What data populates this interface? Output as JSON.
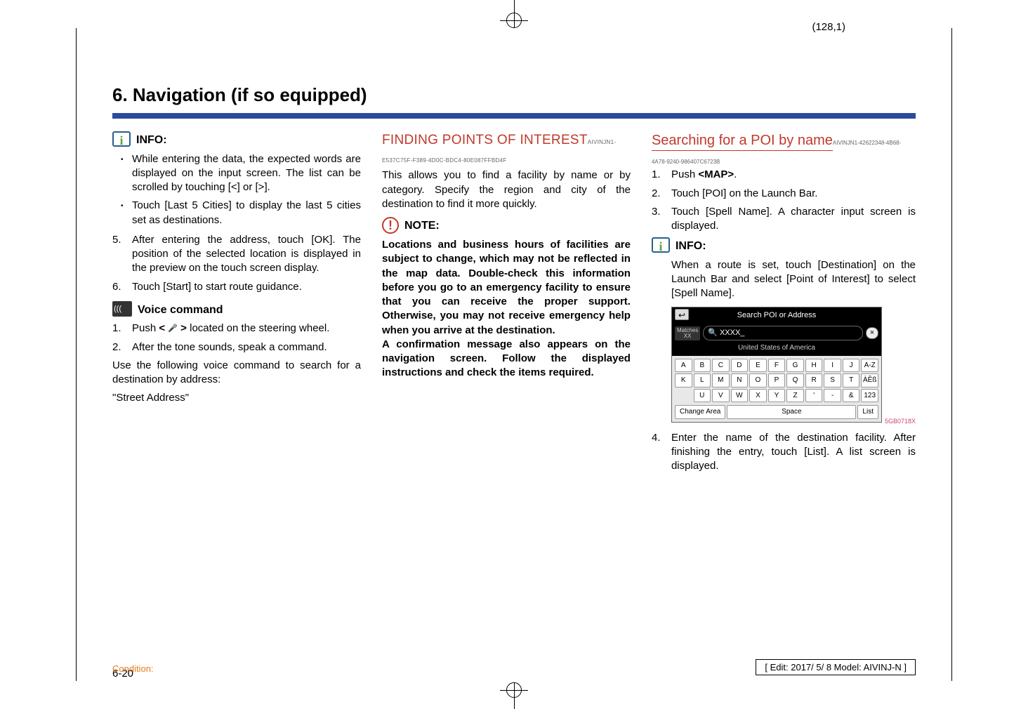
{
  "page_coord": "(128,1)",
  "section_title": "6. Navigation (if so equipped)",
  "colors": {
    "rule_blue": "#2a4b9b",
    "heading_red": "#c0392b",
    "condition_orange": "#e67e22",
    "text": "#000000",
    "info_border": "#2a5f8f",
    "info_i": "#59a63f"
  },
  "col1": {
    "info_label": "INFO:",
    "bullets": [
      "While entering the data, the expected words are displayed on the input screen. The list can be scrolled by touching [<] or [>].",
      "Touch [Last 5 Cities] to display the last 5 cities set as destinations."
    ],
    "steps5": [
      "After entering the address, touch [OK]. The position of the selected location is displayed in the preview on the touch screen display.",
      "Touch [Start] to start route guidance."
    ],
    "voice_label": "Voice command",
    "voice_steps": [
      "Push < 🎤 > located on the steering wheel.",
      "After the tone sounds, speak a command."
    ],
    "voice_para": "Use the following voice command to search for a destination by address:",
    "voice_quote": "\"Street Address\""
  },
  "col2": {
    "heading": "FINDING POINTS OF INTEREST",
    "heading_code": "AIVINJN1-E537C75F-F389-4D0C-BDC4-80E087FFBD4F",
    "intro": "This allows you to find a facility by name or by category. Specify the region and city of the destination to find it more quickly.",
    "note_label": "NOTE:",
    "note_body": "Locations and business hours of facilities are subject to change, which may not be reflected in the map data. Double-check this information before you go to an emergency facility to ensure that you can receive the proper support. Otherwise, you may not receive emergency help when you arrive at the destination.\nA confirmation message also appears on the navigation screen. Follow the displayed instructions and check the items required."
  },
  "col3": {
    "heading": "Searching for a POI by name",
    "heading_code": "AIVINJN1-42622348-4B68-4A78-9240-986407C6723B",
    "steps": [
      {
        "pre": "Push ",
        "bold": "<MAP>",
        "post": "."
      },
      {
        "text": "Touch [POI] on the Launch Bar."
      },
      {
        "text": "Touch [Spell Name]. A character input screen is displayed."
      }
    ],
    "info_label": "INFO:",
    "info_body": "When a route is set, touch [Destination] on the Launch Bar and select [Point of Interest] to select [Spell Name].",
    "screenshot": {
      "header": "Search POI or Address",
      "matches_label": "Matches",
      "matches_value": "XX",
      "search_prefix": "🔍 XXXX_",
      "subtitle": "United States of America",
      "rows": [
        [
          "A",
          "B",
          "C",
          "D",
          "E",
          "F",
          "G",
          "H",
          "I",
          "J",
          "A-Z"
        ],
        [
          "K",
          "L",
          "M",
          "N",
          "O",
          "P",
          "Q",
          "R",
          "S",
          "T",
          "ÀÊß"
        ],
        [
          "",
          "U",
          "V",
          "W",
          "X",
          "Y",
          "Z",
          "'",
          "-",
          "&",
          "123"
        ]
      ],
      "footer_left": "Change Area",
      "footer_center": "Space",
      "footer_right": "List",
      "id": "5GB0718X"
    },
    "step4": "Enter the name of the destination facility. After finishing the entry, touch [List]. A list screen is displayed."
  },
  "page_num": "6-20",
  "condition": "Condition:",
  "edit_box": "[ Edit: 2017/ 5/ 8   Model: AIVINJ-N ]"
}
